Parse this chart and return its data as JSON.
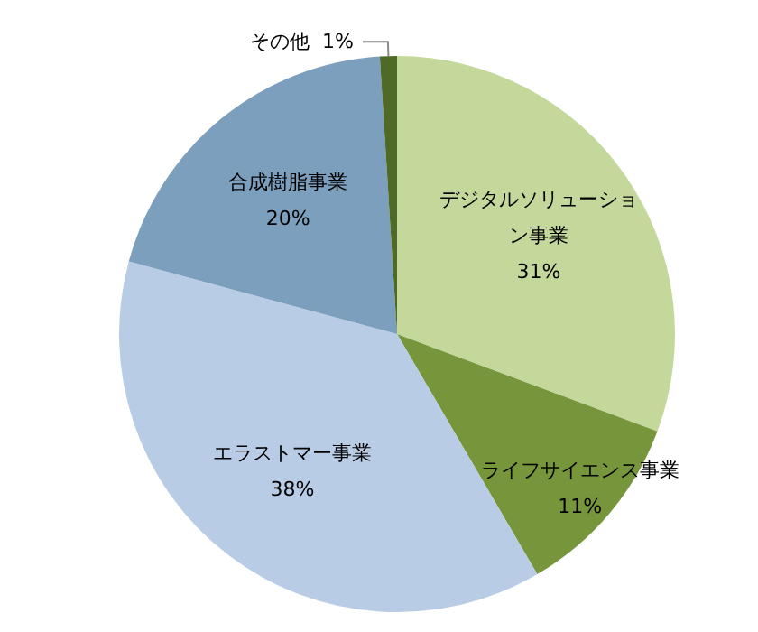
{
  "chart_data": {
    "type": "pie",
    "categories": [
      "デジタルソリューション事業",
      "ライフサイエンス事業",
      "エラストマー事業",
      "合成樹脂事業",
      "その他"
    ],
    "values": [
      31,
      11,
      38,
      20,
      1
    ],
    "value_labels": [
      "31%",
      "11%",
      "38%",
      "20%",
      "1%"
    ],
    "colors": [
      "#c5d89c",
      "#77953b",
      "#b9cce5",
      "#7c9fbd",
      "#4f6a26"
    ],
    "legend": false
  }
}
